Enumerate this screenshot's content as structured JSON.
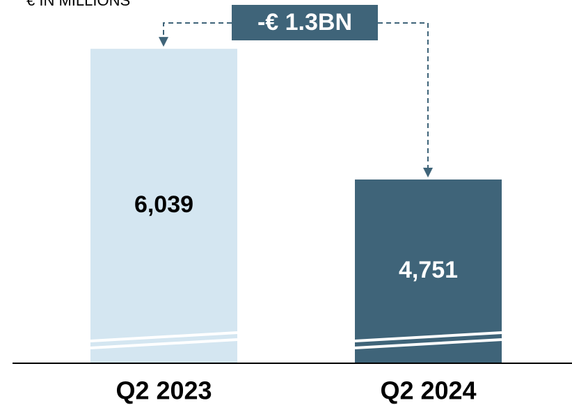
{
  "chart_data": {
    "type": "bar",
    "subtitle": "€ IN MILLIONS",
    "categories": [
      "Q2 2023",
      "Q2 2024"
    ],
    "values": [
      6039,
      4751
    ],
    "value_labels": [
      "6,039",
      "4,751"
    ],
    "colors": [
      "#d4e6f1",
      "#3f6479"
    ],
    "label_colors": [
      "#000000",
      "#ffffff"
    ],
    "ylim": [
      2940,
      6520
    ],
    "axis_break": true,
    "annotation": "-€ 1.3BN"
  }
}
